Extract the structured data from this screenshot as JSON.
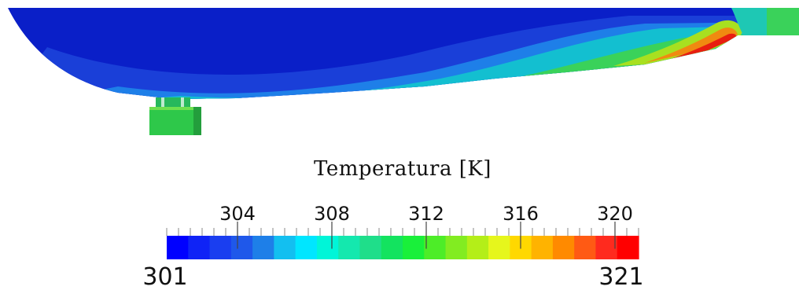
{
  "legend": {
    "title": "Temperatura [K]",
    "min_label": "301",
    "max_label": "321",
    "range": [
      301,
      321
    ],
    "tick_values": [
      304,
      308,
      312,
      316,
      320
    ],
    "tick_labels": [
      "304",
      "308",
      "312",
      "316",
      "320"
    ],
    "minor_tick_step": 0.5,
    "color_steps": [
      "#0000ff",
      "#0f23f6",
      "#1a3ef0",
      "#1f58ea",
      "#1e7fe8",
      "#13bff0",
      "#00e6ff",
      "#00f5d8",
      "#14e8ae",
      "#1fde8a",
      "#13e35f",
      "#19f03a",
      "#4ded28",
      "#82ec21",
      "#b4ee18",
      "#e6f61c",
      "#ffd800",
      "#ffb300",
      "#ff8a00",
      "#ff5a14",
      "#ff2a1e",
      "#ff0000"
    ]
  },
  "field_palette": {
    "cold": "#0a1fc8",
    "cool": "#1a4fd6",
    "mid": "#1ec8b4",
    "warm": "#3ad25a",
    "hot": "#b0e020",
    "peak": "#e81e10",
    "block": "#2ec84a"
  }
}
